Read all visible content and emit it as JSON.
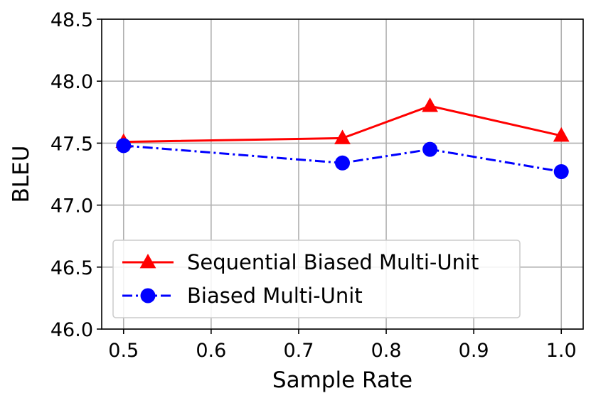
{
  "chart_data": {
    "type": "line",
    "xlabel": "Sample Rate",
    "ylabel": "BLEU",
    "xlim": [
      0.475,
      1.025
    ],
    "ylim": [
      46.0,
      48.5
    ],
    "xticks": [
      0.5,
      0.6,
      0.7,
      0.8,
      0.9,
      1.0
    ],
    "xtick_labels": [
      "0.5",
      "0.6",
      "0.7",
      "0.8",
      "0.9",
      "1.0"
    ],
    "yticks": [
      46.0,
      46.5,
      47.0,
      47.5,
      48.0,
      48.5
    ],
    "ytick_labels": [
      "46.0",
      "46.5",
      "47.0",
      "47.5",
      "48.0",
      "48.5"
    ],
    "grid": true,
    "legend_position": "lower-left",
    "series": [
      {
        "name": "Sequential Biased Multi-Unit",
        "color": "#ff0000",
        "line_style": "solid",
        "marker": "triangle",
        "x": [
          0.5,
          0.75,
          0.85,
          1.0
        ],
        "y": [
          47.51,
          47.54,
          47.8,
          47.56
        ]
      },
      {
        "name": "Biased Multi-Unit",
        "color": "#0000ff",
        "line_style": "dash-dot",
        "marker": "circle",
        "x": [
          0.5,
          0.75,
          0.85,
          1.0
        ],
        "y": [
          47.48,
          47.34,
          47.45,
          47.27
        ]
      }
    ]
  }
}
